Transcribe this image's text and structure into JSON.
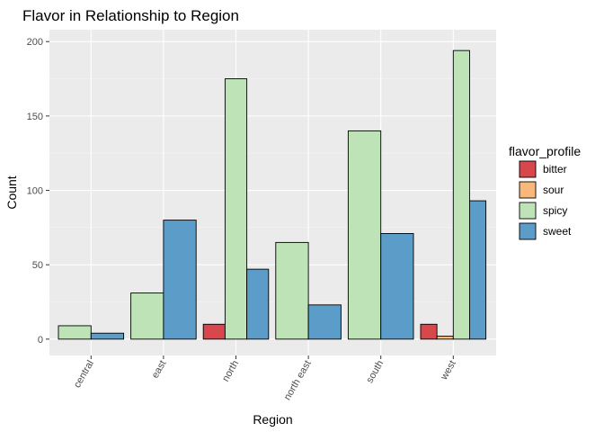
{
  "chart_data": {
    "type": "bar",
    "title": "Flavor in Relationship to Region",
    "xlabel": "Region",
    "ylabel": "Count",
    "ylim": [
      -11,
      208
    ],
    "yticks": [
      0,
      50,
      100,
      150,
      200
    ],
    "categories": [
      "central",
      "east",
      "north",
      "north east",
      "south",
      "west"
    ],
    "legend": {
      "title": "flavor_profile",
      "position": "right"
    },
    "grid": true,
    "series": [
      {
        "name": "bitter",
        "color": "#d7474b",
        "values": [
          null,
          null,
          10,
          null,
          null,
          10
        ]
      },
      {
        "name": "sour",
        "color": "#f9b87b",
        "values": [
          null,
          null,
          null,
          null,
          null,
          2
        ]
      },
      {
        "name": "spicy",
        "color": "#bde3b7",
        "values": [
          9,
          31,
          175,
          65,
          140,
          194
        ]
      },
      {
        "name": "sweet",
        "color": "#5b9cc9",
        "values": [
          4,
          80,
          47,
          23,
          71,
          93
        ]
      }
    ]
  }
}
